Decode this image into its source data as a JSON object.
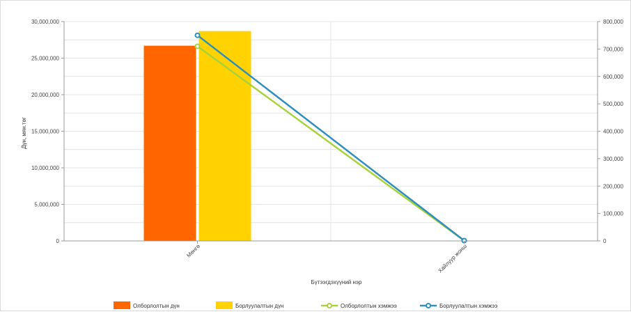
{
  "chart_data": {
    "type": "bar+line",
    "categories": [
      "Мөнгө",
      "Хайлуур жонш"
    ],
    "xlabel": "Бүтээгдэхүүний нэр",
    "ylabel": "Дүн, мян.төг",
    "ylim": [
      0,
      30000000
    ],
    "y2lim": [
      0,
      800000
    ],
    "yticks": [
      "0",
      "5,000,000",
      "10,000,000",
      "15,000,000",
      "20,000,000",
      "25,000,000",
      "30,000,000"
    ],
    "y2ticks": [
      "0",
      "100,000",
      "200,000",
      "300,000",
      "400,000",
      "500,000",
      "600,000",
      "700,000",
      "800,000"
    ],
    "grid": true,
    "legend_position": "bottom",
    "series": [
      {
        "name": "Олборлолтын дүн",
        "kind": "bar",
        "axis": "left",
        "color": "#FF6600",
        "values": [
          26700000,
          0
        ]
      },
      {
        "name": "Борлуулалтын дүн",
        "kind": "bar",
        "axis": "left",
        "color": "#FFD200",
        "values": [
          28700000,
          0
        ]
      },
      {
        "name": "Олборлолтын хэмжээ",
        "kind": "line",
        "axis": "right",
        "color": "#A9D13C",
        "values": [
          710000,
          1000
        ]
      },
      {
        "name": "Борлуулалтын хэмжээ",
        "kind": "line",
        "axis": "right",
        "color": "#2E8FBE",
        "values": [
          750000,
          1000
        ]
      }
    ]
  }
}
